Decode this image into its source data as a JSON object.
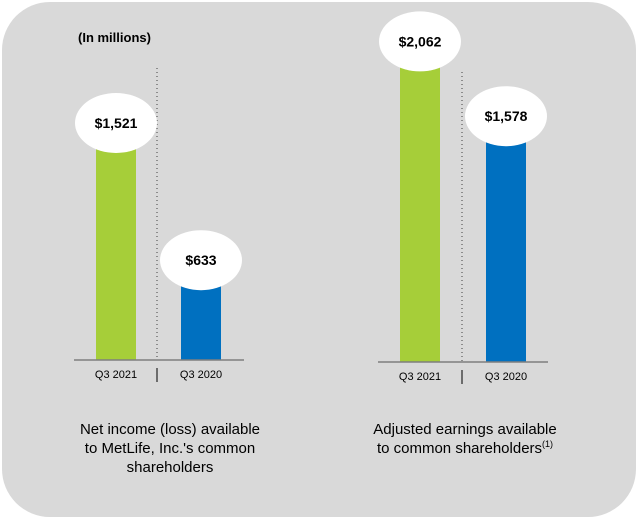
{
  "units_label": "(In millions)",
  "chart_data": [
    {
      "type": "bar",
      "categories": [
        "Q3 2021",
        "Q3 2020"
      ],
      "values": [
        1521,
        633
      ],
      "data_labels": [
        "$1,521",
        "$633"
      ],
      "colors": [
        "#a6ce39",
        "#0070c0"
      ],
      "caption_lines": [
        "Net income (loss) available",
        "to MetLife, Inc.'s common",
        "shareholders"
      ],
      "ylim": [
        0,
        2100
      ]
    },
    {
      "type": "bar",
      "categories": [
        "Q3 2021",
        "Q3 2020"
      ],
      "values": [
        2062,
        1578
      ],
      "data_labels": [
        "$2,062",
        "$1,578"
      ],
      "colors": [
        "#a6ce39",
        "#0070c0"
      ],
      "caption_lines": [
        "Adjusted earnings available",
        "to common shareholders"
      ],
      "caption_footnote": "(1)",
      "ylim": [
        0,
        2100
      ]
    }
  ]
}
